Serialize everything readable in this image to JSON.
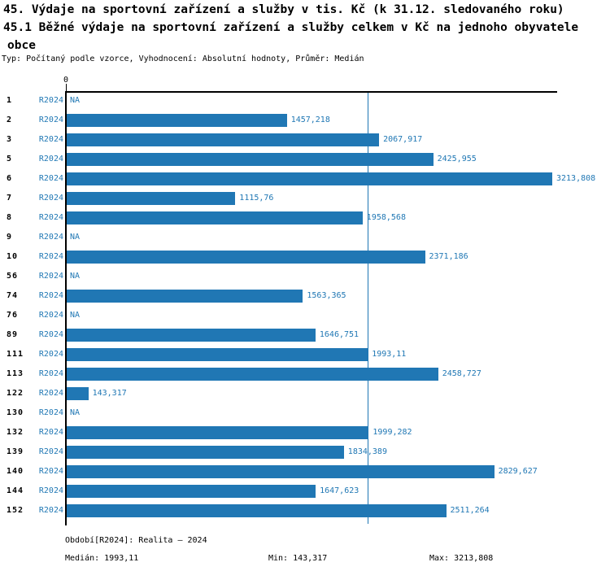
{
  "title": {
    "line1": "45. Výdaje na sportovní zařízení a služby v tis. Kč (k 31.12. sledovaného roku)",
    "line2": "45.1 Běžné výdaje na sportovní zařízení a služby celkem v Kč na jednoho obyvatele",
    "line3": "obce",
    "subtitle": "Typ: Počítaný podle vzorce, Vyhodnocení: Absolutní hodnoty, Průměr: Medián"
  },
  "axis": {
    "zero_label": "0"
  },
  "chart_data": {
    "type": "bar",
    "orientation": "horizontal",
    "title": "45.1 Běžné výdaje na sportovní zařízení a služby celkem v Kč na jednoho obyvatele obce",
    "period_label": "R2024",
    "categories": [
      "1",
      "2",
      "3",
      "5",
      "6",
      "7",
      "8",
      "9",
      "10",
      "56",
      "74",
      "76",
      "89",
      "111",
      "113",
      "122",
      "130",
      "132",
      "139",
      "140",
      "144",
      "152"
    ],
    "values": [
      null,
      1457.218,
      2067.917,
      2425.955,
      3213.808,
      1115.76,
      1958.568,
      null,
      2371.186,
      null,
      1563.365,
      null,
      1646.751,
      1993.11,
      2458.727,
      143.317,
      null,
      1999.282,
      1834.389,
      2829.627,
      1647.623,
      2511.264
    ],
    "value_labels": [
      "NA",
      "1457,218",
      "2067,917",
      "2425,955",
      "3213,808",
      "1115,76",
      "1958,568",
      "NA",
      "2371,186",
      "NA",
      "1563,365",
      "NA",
      "1646,751",
      "1993,11",
      "2458,727",
      "143,317",
      "NA",
      "1999,282",
      "1834,389",
      "2829,627",
      "1647,623",
      "2511,264"
    ],
    "xlim": [
      0,
      3250
    ],
    "x_tick_labels": [
      "0"
    ],
    "median": 1993.11,
    "min": 143.317,
    "max": 3213.808,
    "grid": false,
    "bar_color": "#2077B4",
    "median_line_color": "#1F77B4",
    "label_color": "#1F77B4",
    "axis_color": "#000000"
  },
  "footer": {
    "period": "Období[R2024]: Realita – 2024",
    "median": "Medián: 1993,11",
    "min": "Min: 143,317",
    "max": "Max: 3213,808"
  }
}
